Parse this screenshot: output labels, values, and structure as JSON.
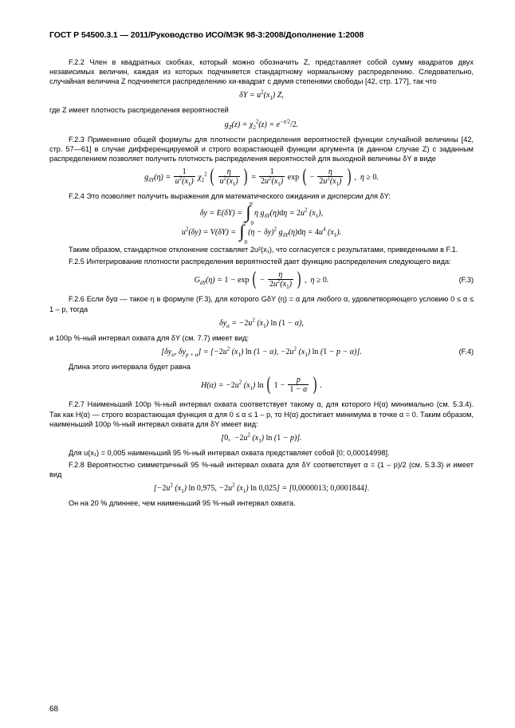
{
  "header": "ГОСТ Р 54500.3.1 — 2011/Руководство ИСО/МЭК 98-3:2008/Дополнение 1:2008",
  "pageNumber": "68",
  "p": {
    "f22": "F.2.2 Член в квадратных скобках, который можно обозначить Z, представляет собой сумму квадратов двух независимых величин, каждая из которых подчиняется стандартному нормальному распределению. Следовательно, случайная величина Z подчиняется распределению хи-квадрат с двумя степенями свободы [42, стр. 177], так что",
    "whereZ": "где Z имеет плотность распределения вероятностей",
    "f23": "F.2.3 Применение общей формулы для плотности распределения вероятностей функции случайной величины [42, стр. 57—61] в случае дифференцируемой и строго возрастающей функции аргумента (в данном случае Z) с заданным распределением позволяет получить плотность распределения вероятностей для выходной величины δY в виде",
    "f24": "F.2.4 Это позволяет получить выражения для математического ожидания и дисперсии для δY:",
    "thus": "Таким образом, стандартное отклонение составляет 2u²(x₁), что согласуется с результатами, приведенными в F.1.",
    "f25": "F.2.5 Интегрирование плотности распределения вероятностей дает функцию распределения следующего вида:",
    "f26": "F.2.6 Если δyα — такое η в формуле (F.3), для которого GδY (η) = α для любого α, удовлетворяющего условию 0 ≤ α ≤ 1 – p, тогда",
    "andInterval": "и 100p %-ный интервал охвата для δY  (см. 7.7) имеет вид:",
    "lenIntro": "Длина этого интервала будет равна",
    "f27": "F.2.7 Наименьший  100p %-ный интервал  охвата  соответствует такому α, для которого H(α) минимально (см. 5.3.4). Так как H(α) — строго возрастающая функция α для 0 ≤ α ≤ 1 – p, то H(α) достигает  минимума  в точке α = 0. Таким образом, наименьший 100p %-ный интервал охвата для δY имеет вид:",
    "forU": "Для u(x₁) = 0,005 наименьший 95 %-ный интервал охвата представляет собой [0; 0,00014998].",
    "f28": "F.2.8 Вероятностно симметричный 95 %-ный интервал охвата для δY соответствует α = (1 – p)/2 (см. 5.3.3) и имеет вид",
    "longer": "Он на 20 % длиннее, чем наименьший 95 %-ный интервал охвата."
  },
  "eqLabels": {
    "f3": "(F.3)",
    "f4": "(F.4)"
  }
}
